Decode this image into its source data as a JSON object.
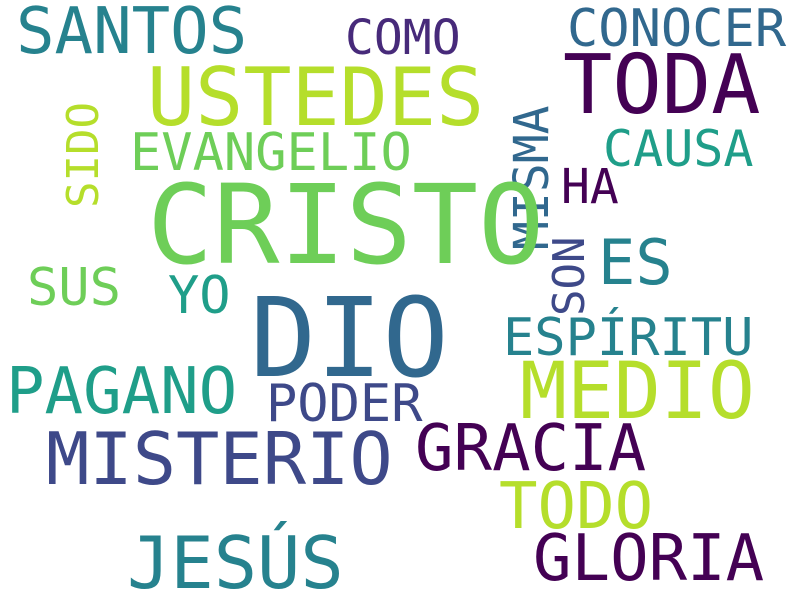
{
  "words": {
    "santos": {
      "text": "SANTOS",
      "color": "#26828e"
    },
    "como": {
      "text": "COMO",
      "color": "#472a7a"
    },
    "conocer": {
      "text": "CONOCER",
      "color": "#31688e"
    },
    "ustedes": {
      "text": "USTEDES",
      "color": "#b5de2b"
    },
    "toda": {
      "text": "TODA",
      "color": "#440154"
    },
    "sido": {
      "text": "SIDO",
      "color": "#b5de2b"
    },
    "evangelio": {
      "text": "EVANGELIO",
      "color": "#6ece58"
    },
    "misma": {
      "text": "MISMA",
      "color": "#31688e"
    },
    "causa": {
      "text": "CAUSA",
      "color": "#1f9e89"
    },
    "cristo": {
      "text": "CRISTO",
      "color": "#6ece58"
    },
    "ha": {
      "text": "HA",
      "color": "#440154"
    },
    "es": {
      "text": "ES",
      "color": "#26828e"
    },
    "son": {
      "text": "SON",
      "color": "#3e4989"
    },
    "sus": {
      "text": "SUS",
      "color": "#6ece58"
    },
    "yo": {
      "text": "YO",
      "color": "#1f9e89"
    },
    "dio": {
      "text": "DIO",
      "color": "#31688e"
    },
    "espiritu": {
      "text": "ESPÍRITU",
      "color": "#26828e"
    },
    "pagano": {
      "text": "PAGANO",
      "color": "#1f9e89"
    },
    "poder": {
      "text": "PODER",
      "color": "#3e4989"
    },
    "medio": {
      "text": "MEDIO",
      "color": "#b5de2b"
    },
    "misterio": {
      "text": "MISTERIO",
      "color": "#3e4989"
    },
    "gracia": {
      "text": "GRACIA",
      "color": "#440154"
    },
    "todo": {
      "text": "TODO",
      "color": "#b5de2b"
    },
    "jesus": {
      "text": "JESÚS",
      "color": "#26828e"
    },
    "gloria": {
      "text": "GLORIA",
      "color": "#440154"
    }
  },
  "background_color": "#ffffff"
}
